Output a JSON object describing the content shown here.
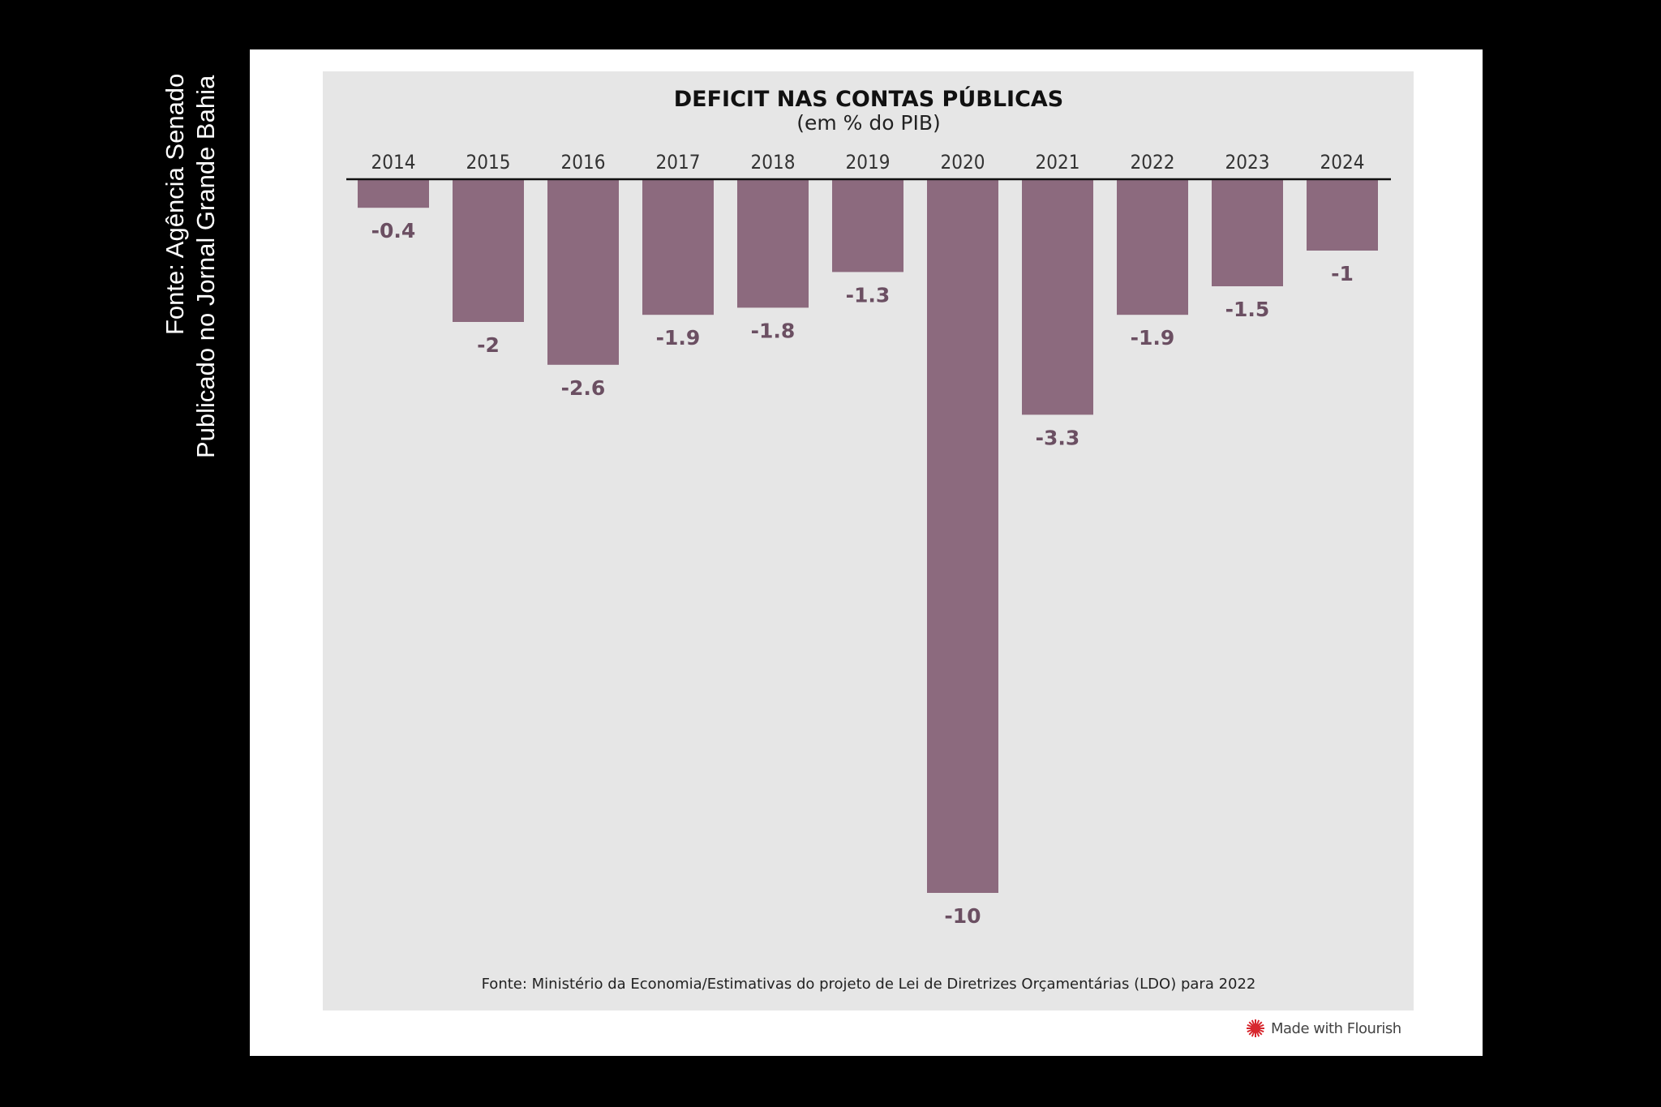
{
  "side_note": {
    "line1": "Fonte: Agência Senado",
    "line2": "Publicado no Jornal Grande Bahia"
  },
  "chart_data": {
    "type": "bar",
    "title": "DEFICIT NAS CONTAS PÚBLICAS",
    "subtitle": "(em % do PIB)",
    "categories": [
      "2014",
      "2015",
      "2016",
      "2017",
      "2018",
      "2019",
      "2020",
      "2021",
      "2022",
      "2023",
      "2024"
    ],
    "values": [
      -0.4,
      -2,
      -2.6,
      -1.9,
      -1.8,
      -1.3,
      -10,
      -3.3,
      -1.9,
      -1.5,
      -1
    ],
    "data_labels": [
      "-0.4",
      "-2",
      "-2.6",
      "-1.9",
      "-1.8",
      "-1.3",
      "-10",
      "-3.3",
      "-1.9",
      "-1.5",
      "-1"
    ],
    "xaxis_position": "top",
    "ylim": [
      -10,
      0
    ],
    "grid": false,
    "bar_color": "#8c6a7e",
    "label_color": "#6b4f62",
    "source": "Fonte: Ministério da Economia/Estimativas do projeto de Lei de Diretrizes Orçamentárias (LDO) para 2022"
  },
  "branding": {
    "label": "Made with Flourish",
    "icon": "flourish-logo-icon",
    "icon_color": "#d7282f"
  }
}
